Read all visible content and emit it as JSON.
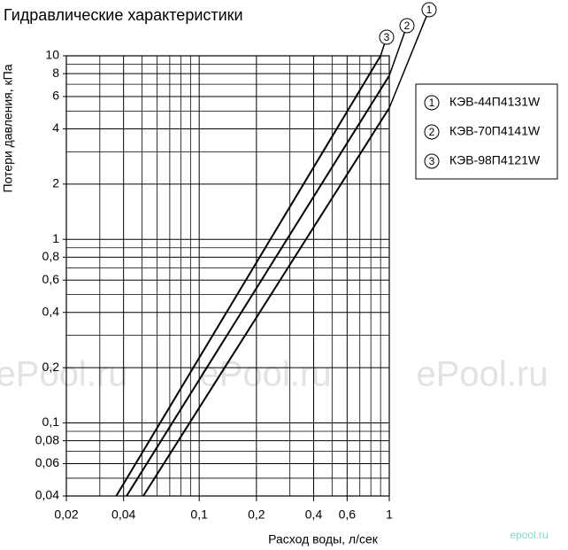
{
  "chart_data": {
    "type": "line",
    "title": "Гидравлические характеристики",
    "x_label": "Расход воды, л/сек",
    "y_label": "Потери давления, кПа",
    "log_x": true,
    "log_y": true,
    "grid": true,
    "legend": "right",
    "xlim": [
      0.02,
      1
    ],
    "ylim": [
      0.04,
      10
    ],
    "xticks": [
      {
        "value": 0.02,
        "label": "0,02"
      },
      {
        "value": 0.04,
        "label": "0,04"
      },
      {
        "value": 0.1,
        "label": "0,1"
      },
      {
        "value": 0.2,
        "label": "0,2"
      },
      {
        "value": 0.4,
        "label": "0,4"
      },
      {
        "value": 0.6,
        "label": "0,6"
      },
      1
    ],
    "xminor": [
      0.03,
      0.05,
      0.06,
      0.07,
      0.08,
      0.09,
      0.3,
      0.5,
      0.7,
      0.8,
      0.9
    ],
    "yticks": [
      {
        "value": 0.04,
        "label": "0,04"
      },
      {
        "value": 0.06,
        "label": "0,06"
      },
      {
        "value": 0.08,
        "label": "0,08"
      },
      {
        "value": 0.1,
        "label": "0,1"
      },
      {
        "value": 0.2,
        "label": "0,2"
      },
      {
        "value": 0.4,
        "label": "0,4"
      },
      {
        "value": 0.6,
        "label": "0,6"
      },
      {
        "value": 0.8,
        "label": "0,8"
      },
      1,
      2,
      4,
      6,
      8,
      10
    ],
    "yminor": [
      0.05,
      0.07,
      0.09,
      0.3,
      0.5,
      0.7,
      0.9,
      3,
      5,
      7,
      9
    ],
    "series": [
      {
        "name": "КЭВ-44П4131W",
        "label": "1",
        "color": "#000000",
        "x": [
          0.0508,
          1
        ],
        "values": [
          0.04,
          5.2
        ]
      },
      {
        "name": "КЭВ-70П4141W",
        "label": "2",
        "color": "#000000",
        "x": [
          0.0415,
          1
        ],
        "values": [
          0.04,
          7.8
        ]
      },
      {
        "name": "КЭВ-98П4121W",
        "label": "3",
        "color": "#000000",
        "x": [
          0.0366,
          0.9
        ],
        "values": [
          0.04,
          10
        ]
      }
    ],
    "watermarks": [
      "ePool.ru",
      "ePool.ru",
      "ePool.ru",
      "epool.ru"
    ]
  }
}
